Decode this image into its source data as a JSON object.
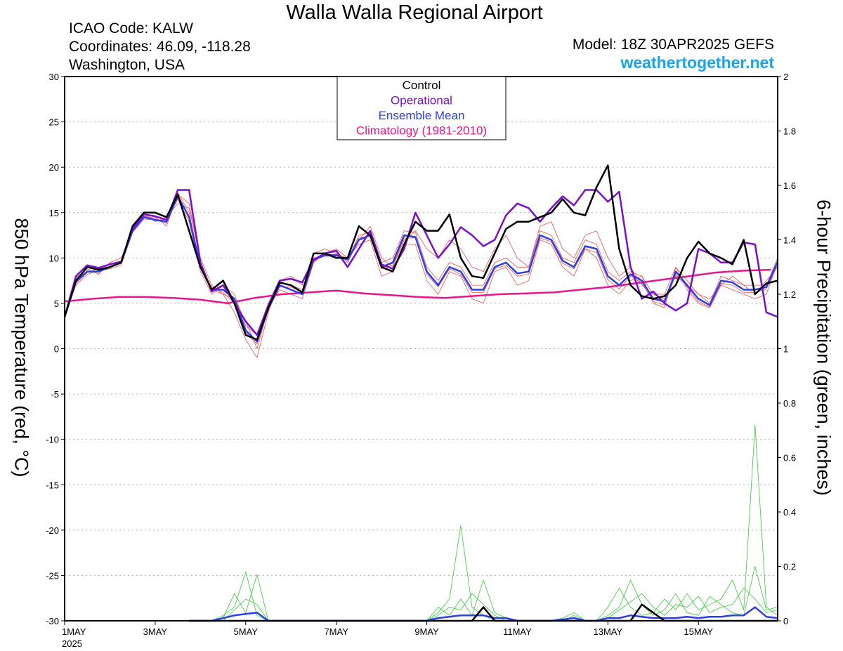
{
  "header": {
    "title": "Walla Walla Regional Airport",
    "icao": "ICAO Code: KALW",
    "coords": "Coordinates: 46.09, -118.28",
    "region": "Washington, USA",
    "model": "Model: 18Z 30APR2025 GEFS",
    "site": "weathertogether.net"
  },
  "colors": {
    "control": "#000000",
    "operational": "#7a0fd0",
    "mean": "#2b3fe8",
    "climatology": "#e8158c",
    "members_temp": "#f05050",
    "members_precip": "#33cc33"
  },
  "chart_data": {
    "type": "line",
    "title": "Walla Walla Regional Airport",
    "ylabel": "850 hPa Temperature (red, °C)",
    "y2label": "6-hour Precipitation (green, inches)",
    "ylim": [
      -30,
      30
    ],
    "y2lim": [
      0,
      2
    ],
    "yticks": [
      30,
      25,
      20,
      15,
      10,
      5,
      0,
      -5,
      -10,
      -15,
      -20,
      -25,
      -30
    ],
    "y2ticks": [
      2,
      1.8,
      1.6,
      1.4,
      1.2,
      1,
      0.8,
      0.6,
      0.4,
      0.2,
      0
    ],
    "xlim": [
      0,
      15.75
    ],
    "xticks": [
      {
        "x": 0,
        "label": "1MAY",
        "sub": "2025"
      },
      {
        "x": 2,
        "label": "3MAY"
      },
      {
        "x": 4,
        "label": "5MAY"
      },
      {
        "x": 6,
        "label": "7MAY"
      },
      {
        "x": 8,
        "label": "9MAY"
      },
      {
        "x": 10,
        "label": "11MAY"
      },
      {
        "x": 12,
        "label": "13MAY"
      },
      {
        "x": 14,
        "label": "15MAY"
      }
    ],
    "grid": true,
    "legend": {
      "position": "top-center",
      "entries": [
        {
          "label": "Control",
          "color": "#000000"
        },
        {
          "label": "Operational",
          "color": "#7a0fd0"
        },
        {
          "label": "Ensemble Mean",
          "color": "#2b3fe8"
        },
        {
          "label": "Climatology (1981-2010)",
          "color": "#e8158c"
        }
      ]
    },
    "x_step_days": 0.25,
    "temperature": {
      "control": [
        3.5,
        7.5,
        9,
        8.7,
        9,
        9.5,
        13.5,
        15,
        15,
        14.5,
        17,
        13,
        9,
        6.5,
        7.5,
        5,
        1.5,
        1,
        4.5,
        7.3,
        7,
        6.2,
        10.5,
        10.5,
        10,
        10,
        13.5,
        12.5,
        9,
        8.5,
        11.5,
        14,
        13,
        13,
        14.8,
        10,
        8,
        7.8,
        10.5,
        13.2,
        14,
        14,
        14.5,
        15,
        16.5,
        15,
        14.7,
        17.8,
        20.2,
        11,
        7,
        5.8,
        5.5,
        5.8,
        7,
        10,
        11.8,
        10.5,
        10,
        9.3,
        12,
        6,
        7.2,
        7.5,
        8.5
      ],
      "operational": [
        3.5,
        8,
        9.2,
        8.9,
        9.3,
        9.6,
        13.2,
        14.8,
        14.6,
        14.2,
        17.5,
        17.5,
        9.5,
        6.3,
        7,
        5,
        3,
        1.5,
        4.8,
        7.5,
        7.7,
        7.3,
        9.8,
        10.5,
        10.8,
        9,
        11,
        13,
        9.3,
        8.8,
        11,
        15,
        12.5,
        10,
        11.5,
        13.4,
        12.5,
        11.3,
        12,
        14.7,
        16,
        15.5,
        14,
        15.5,
        16.8,
        15.8,
        17.5,
        17.5,
        16.2,
        17.3,
        9,
        5.5,
        6.3,
        5,
        4.2,
        5,
        11,
        10.5,
        9.5,
        9.5,
        11.7,
        11.5,
        4,
        3.5,
        6,
        6.3,
        6,
        5,
        5.6
      ],
      "mean": [
        3.5,
        7.4,
        8.5,
        8.5,
        9,
        9.5,
        13,
        14.5,
        14.2,
        14,
        16.8,
        14.5,
        9,
        6.5,
        6.5,
        5.5,
        2,
        0.8,
        4.5,
        7,
        6.5,
        6,
        9.8,
        10.3,
        10.3,
        9.8,
        12,
        12.5,
        9,
        9.5,
        12.5,
        12.3,
        8.5,
        7,
        9,
        8.5,
        6.5,
        6.5,
        9,
        9.5,
        8.3,
        8.5,
        12.5,
        12,
        9.7,
        9,
        11.3,
        11,
        8,
        7,
        8.2,
        7.5,
        5.5,
        5.2,
        8.5,
        7,
        5.5,
        4.8,
        7.5,
        7.3,
        6.5,
        6.5,
        6.8,
        9.6,
        9.8,
        8.8,
        8.5,
        8.3
      ],
      "climatology": [
        5.2,
        5.5,
        5.7,
        5.7,
        5.6,
        5.4,
        5.0,
        5.6,
        6.0,
        6.2,
        6.4,
        6.1,
        5.9,
        5.7,
        5.6,
        5.8,
        6.0,
        6.1,
        6.2,
        6.5,
        6.8,
        7.2,
        7.6,
        8.0,
        8.4,
        8.6,
        8.7,
        8.7
      ],
      "climatology_step_days": 0.6,
      "members": [
        [
          3.5,
          7.8,
          8.8,
          8.2,
          9.5,
          10,
          13,
          15,
          14,
          14.5,
          16,
          15.5,
          10,
          7,
          6,
          4,
          1,
          -1,
          4,
          7.5,
          8,
          7,
          10.5,
          11,
          10.5,
          9.5,
          12,
          13.5,
          10,
          9,
          12,
          13,
          11,
          10,
          12,
          11,
          9,
          8.5,
          11,
          12.5,
          10,
          9,
          13.5,
          14,
          11,
          10,
          12.5,
          13,
          10,
          8,
          9,
          7,
          6,
          5.5,
          8,
          7,
          6,
          5.5,
          7,
          8,
          7,
          6,
          7.5,
          9,
          10,
          9,
          8.5,
          8
        ],
        [
          3.5,
          7,
          8.2,
          8.6,
          8.8,
          9.2,
          13.5,
          14.8,
          14.5,
          13.5,
          17,
          16,
          9.5,
          6.5,
          6,
          5.5,
          3,
          0,
          4.5,
          6.5,
          6,
          5.5,
          9.5,
          10.5,
          11,
          10,
          11.5,
          12,
          8,
          8.5,
          11.5,
          11.5,
          7.5,
          6,
          8.5,
          8,
          5.5,
          5,
          8.5,
          9,
          7,
          7.5,
          12,
          11.5,
          9,
          8,
          11,
          10,
          7,
          6,
          7.5,
          8,
          5,
          4.5,
          9,
          6.5,
          5,
          4.5,
          7,
          6.5,
          6,
          5.5,
          6,
          9.5,
          9.5,
          9,
          8,
          7.5
        ],
        [
          3.5,
          7.6,
          8.6,
          8.4,
          9.1,
          9.4,
          12.8,
          14.3,
          14.2,
          14.2,
          16.5,
          14,
          8.5,
          6,
          7,
          6,
          2.5,
          1.5,
          5,
          7.2,
          7,
          6.5,
          10,
          10.2,
          10.2,
          9.8,
          12.5,
          12.8,
          9.5,
          10,
          13,
          12.8,
          9,
          7.5,
          9.5,
          9,
          7,
          7,
          9.5,
          10,
          9,
          9,
          13,
          12.5,
          10,
          9.5,
          12,
          11.5,
          8.5,
          7.5,
          8.5,
          8,
          6,
          6,
          9,
          7.5,
          6,
          5,
          8,
          7.5,
          7,
          7,
          7,
          10,
          10,
          9.2,
          9,
          8.5
        ],
        [
          3.5,
          7.2,
          8.4,
          8.8,
          8.9,
          9.6,
          13.2,
          14.6,
          14.4,
          13.8,
          17.2,
          15,
          9,
          6.8,
          6.2,
          5,
          1.8,
          0.5,
          4.2,
          6.8,
          6.8,
          6.2,
          9.6,
          10.4,
          10.4,
          10,
          12.2,
          12.4,
          8.8,
          9.2,
          12.2,
          12.2,
          8.2,
          6.8,
          8.8,
          8.2,
          6.2,
          6.2,
          8.8,
          9.2,
          8,
          8.2,
          12.2,
          11.8,
          9.4,
          8.8,
          11,
          10.6,
          7.6,
          6.6,
          8,
          7.2,
          5.2,
          4.8,
          8.2,
          6.8,
          5.2,
          4.6,
          7.2,
          7,
          6.2,
          6.2,
          6.6,
          9.2,
          9.6,
          8.6,
          8.2,
          8
        ]
      ]
    },
    "precipitation": {
      "x_start_day": 2.75,
      "control": [
        0,
        0,
        0,
        0,
        0,
        0,
        0,
        0,
        0,
        0,
        0,
        0,
        0,
        0,
        0,
        0,
        0,
        0,
        0,
        0,
        0,
        0,
        0,
        0,
        0,
        0,
        0.05,
        0,
        0,
        0,
        0,
        0,
        0,
        0,
        0,
        0,
        0,
        0,
        0,
        0,
        0.06,
        0.03,
        0,
        0,
        0,
        0,
        0,
        0,
        0,
        0,
        0,
        0,
        0,
        0,
        0,
        0,
        0,
        0,
        0,
        0.63,
        0.03,
        0,
        0,
        0
      ],
      "mean": [
        0,
        0,
        0,
        0.01,
        0.02,
        0.025,
        0.03,
        0,
        0,
        0,
        0,
        0,
        0,
        0,
        0,
        0,
        0,
        0,
        0,
        0,
        0,
        0,
        0.01,
        0.015,
        0.02,
        0.02,
        0.02,
        0.01,
        0.01,
        0,
        0,
        0,
        0,
        0.005,
        0.01,
        0,
        0,
        0.01,
        0.01,
        0.02,
        0.015,
        0.01,
        0.01,
        0.01,
        0.015,
        0.01,
        0.015,
        0.015,
        0.02,
        0.02,
        0.05,
        0.015,
        0.01,
        0.005,
        0.01,
        0.015,
        0.03,
        0.025,
        0.03,
        0.04,
        0.01,
        0.005,
        0,
        0
      ],
      "members": [
        [
          0,
          0,
          0,
          0.02,
          0.05,
          0.18,
          0.02,
          0,
          0,
          0,
          0,
          0,
          0,
          0,
          0,
          0,
          0,
          0,
          0,
          0,
          0,
          0,
          0.03,
          0.08,
          0.35,
          0.05,
          0.02,
          0,
          0,
          0,
          0,
          0,
          0,
          0,
          0.02,
          0,
          0,
          0.05,
          0.12,
          0.05,
          0.02,
          0.03,
          0.08,
          0.04,
          0.1,
          0.04,
          0.06,
          0.08,
          0.15,
          0.04,
          0.72,
          0.05,
          0.02,
          0.01,
          0.03,
          0.05,
          0.12,
          0.38,
          0.1,
          0.04,
          0.02,
          0,
          0,
          0
        ],
        [
          0,
          0,
          0,
          0.01,
          0.1,
          0.03,
          0.17,
          0,
          0,
          0,
          0,
          0,
          0,
          0,
          0,
          0,
          0,
          0,
          0,
          0,
          0,
          0,
          0.05,
          0.02,
          0.08,
          0.02,
          0.15,
          0.03,
          0.01,
          0,
          0,
          0,
          0,
          0.01,
          0.03,
          0,
          0,
          0.02,
          0.05,
          0.15,
          0.06,
          0.02,
          0.04,
          0.1,
          0.03,
          0.02,
          0.09,
          0.06,
          0.03,
          0.02,
          0.2,
          0.04,
          0.05,
          0.02,
          0.04,
          0.08,
          0.15,
          0.09,
          0.24,
          0.05,
          0.03,
          0.02,
          0,
          0
        ],
        [
          0,
          0,
          0,
          0,
          0.04,
          0.08,
          0.06,
          0,
          0,
          0,
          0,
          0,
          0,
          0,
          0,
          0,
          0,
          0,
          0,
          0,
          0,
          0,
          0.02,
          0.05,
          0.04,
          0.1,
          0.06,
          0.02,
          0,
          0,
          0,
          0,
          0,
          0,
          0.01,
          0,
          0,
          0.01,
          0.04,
          0.07,
          0.1,
          0.05,
          0.02,
          0.06,
          0.05,
          0.09,
          0.03,
          0.05,
          0.06,
          0.12,
          0.08,
          0.03,
          0.04,
          0.03,
          0.06,
          0.04,
          0.05,
          0.07,
          0.06,
          0.09,
          0.06,
          0.02,
          0.03,
          0
        ]
      ]
    }
  }
}
